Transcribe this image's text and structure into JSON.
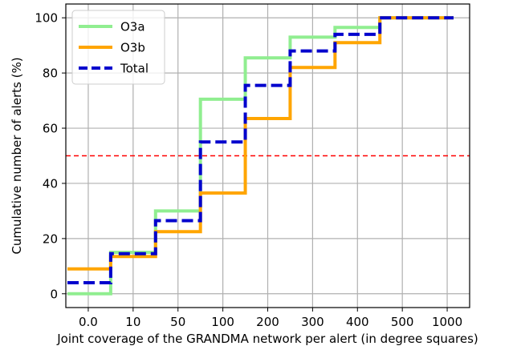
{
  "chart_data": {
    "type": "line",
    "step": true,
    "xlabel": "Joint coverage of the GRANDMA network per alert (in degree squares)",
    "ylabel": "Cumulative number of alerts (%)",
    "categories": [
      "0.0",
      "10",
      "50",
      "100",
      "200",
      "300",
      "400",
      "500",
      "1000"
    ],
    "ylim": [
      -5,
      105
    ],
    "yticks": [
      0,
      20,
      40,
      60,
      80,
      100
    ],
    "grid": true,
    "legend_position": "top-left",
    "reference_line": {
      "y": 50,
      "color": "#ff0000",
      "style": "dashed"
    },
    "series": [
      {
        "name": "O3a",
        "color": "#90ee90",
        "style": "solid",
        "values": [
          0,
          15,
          30,
          70.5,
          85.5,
          93,
          96.5,
          100,
          100
        ]
      },
      {
        "name": "O3b",
        "color": "#ffa500",
        "style": "solid",
        "values": [
          9,
          13.5,
          22.5,
          36.5,
          63.5,
          82,
          91,
          100,
          100
        ]
      },
      {
        "name": "Total",
        "color": "#0000cd",
        "style": "dashed",
        "values": [
          4,
          14.5,
          26.5,
          55,
          75.5,
          88,
          94,
          100,
          100
        ]
      }
    ]
  }
}
